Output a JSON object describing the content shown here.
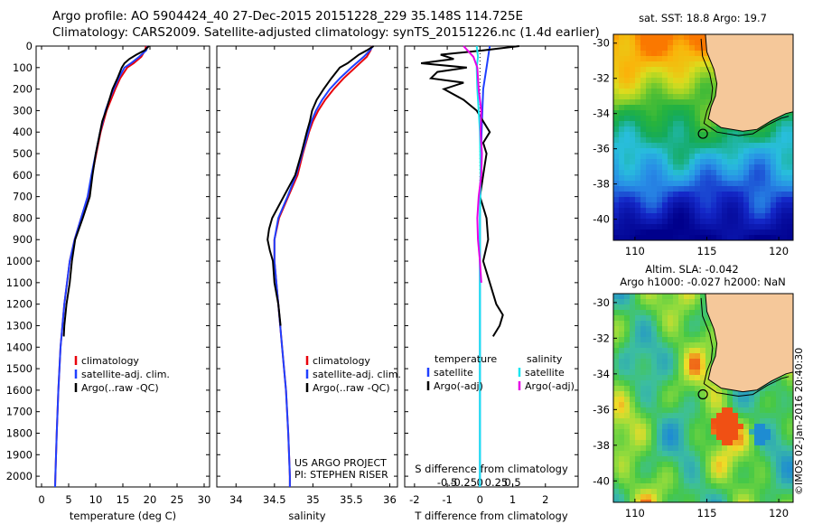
{
  "title_line1": "Argo profile: AO 5904424_40 27-Dec-2015 20151228_229 35.148S 114.725E",
  "title_line2": "Climatology: CARS2009. Satellite-adjusted climatology: synTS_20151226.nc (1.4d earlier)",
  "depth_ticks": [
    0,
    100,
    200,
    300,
    400,
    500,
    600,
    700,
    800,
    900,
    1000,
    1100,
    1200,
    1300,
    1400,
    1500,
    1600,
    1700,
    1800,
    1900,
    2000
  ],
  "colors": {
    "climatology": "#e8000b",
    "satellite": "#1f3fff",
    "argo": "#000000",
    "satellite_s": "#19e6f0",
    "argo_s": "#e600e6"
  },
  "chart_data": [
    {
      "type": "line",
      "id": "temperature",
      "xlabel": "temperature (deg C)",
      "ylabel": "",
      "xlim": [
        -1,
        31
      ],
      "ylim": [
        2050,
        0
      ],
      "xticks": [
        0,
        5,
        10,
        15,
        20,
        25,
        30
      ],
      "legend": [
        "climatology",
        "satellite-adj. clim.",
        "Argo(..raw -QC)"
      ],
      "series": [
        {
          "name": "climatology",
          "depth": [
            0,
            20,
            50,
            80,
            100,
            150,
            200,
            250,
            300,
            400,
            500,
            600,
            700,
            800,
            900,
            1000,
            1200,
            1400,
            1600,
            1800,
            2000,
            2050
          ],
          "values": [
            19.3,
            19.1,
            18.4,
            17,
            15.8,
            14.5,
            13.6,
            12.8,
            12,
            10.9,
            10.1,
            9.3,
            8.6,
            7.3,
            6.1,
            5.2,
            4.2,
            3.5,
            3.1,
            2.8,
            2.55,
            2.5
          ]
        },
        {
          "name": "satellite-adj. clim.",
          "depth": [
            0,
            20,
            50,
            80,
            100,
            150,
            200,
            250,
            300,
            400,
            500,
            600,
            700,
            800,
            900,
            1000,
            1200,
            1400,
            1600,
            1800,
            2000,
            2050
          ],
          "values": [
            19.6,
            19.3,
            18,
            16.5,
            15.3,
            14.2,
            13.3,
            12.5,
            11.8,
            10.8,
            10,
            9.2,
            8.5,
            7.3,
            6.1,
            5.2,
            4.2,
            3.5,
            3.1,
            2.8,
            2.55,
            2.5
          ]
        },
        {
          "name": "Argo(..raw -QC)",
          "depth": [
            0,
            20,
            40,
            60,
            80,
            100,
            150,
            200,
            250,
            300,
            350,
            400,
            500,
            600,
            700,
            800,
            850,
            900,
            1000,
            1100,
            1200,
            1300,
            1350
          ],
          "values": [
            19.8,
            19,
            17.5,
            16.2,
            15.3,
            14.8,
            14,
            13.1,
            12.5,
            11.9,
            11.2,
            10.8,
            10,
            9.4,
            8.9,
            7.6,
            6.9,
            6.2,
            5.6,
            5.2,
            4.6,
            4.2,
            4.1
          ]
        }
      ]
    },
    {
      "type": "line",
      "id": "salinity",
      "xlabel": "salinity",
      "ylabel": "",
      "xlim": [
        33.75,
        36.1
      ],
      "ylim": [
        2050,
        0
      ],
      "xticks": [
        34,
        34.5,
        35,
        35.5,
        36
      ],
      "tick_labels": [
        "34",
        "34.5",
        "35",
        "35.5",
        "36"
      ],
      "legend": [
        "climatology",
        "satellite-adj. clim.",
        "Argo(..raw -QC)"
      ],
      "annotation": [
        "US ARGO PROJECT",
        "PI: STEPHEN RISER"
      ],
      "series": [
        {
          "name": "climatology",
          "depth": [
            0,
            20,
            50,
            100,
            150,
            200,
            250,
            300,
            350,
            400,
            500,
            600,
            700,
            800,
            900,
            1000,
            1200,
            1400,
            1600,
            1800,
            2000,
            2050
          ],
          "values": [
            35.77,
            35.75,
            35.7,
            35.55,
            35.4,
            35.27,
            35.16,
            35.07,
            35.0,
            34.95,
            34.87,
            34.8,
            34.68,
            34.56,
            34.5,
            34.5,
            34.55,
            34.6,
            34.65,
            34.68,
            34.7,
            34.7
          ]
        },
        {
          "name": "satellite-adj. clim.",
          "depth": [
            0,
            20,
            50,
            100,
            150,
            200,
            250,
            300,
            350,
            400,
            500,
            600,
            700,
            800,
            900,
            1000,
            1200,
            1400,
            1600,
            1800,
            2000,
            2050
          ],
          "values": [
            35.78,
            35.74,
            35.66,
            35.5,
            35.35,
            35.22,
            35.12,
            35.04,
            34.98,
            34.94,
            34.86,
            34.78,
            34.67,
            34.55,
            34.5,
            34.5,
            34.55,
            34.6,
            34.65,
            34.68,
            34.7,
            34.7
          ]
        },
        {
          "name": "Argo(..raw -QC)",
          "depth": [
            0,
            20,
            40,
            80,
            100,
            150,
            200,
            250,
            300,
            350,
            400,
            500,
            600,
            700,
            800,
            850,
            900,
            950,
            1000,
            1100,
            1200,
            1300
          ],
          "values": [
            35.79,
            35.7,
            35.6,
            35.45,
            35.35,
            35.24,
            35.14,
            35.05,
            34.99,
            34.96,
            34.92,
            34.85,
            34.77,
            34.62,
            34.47,
            34.43,
            34.41,
            34.44,
            34.48,
            34.5,
            34.55,
            34.58
          ]
        }
      ]
    },
    {
      "type": "line",
      "id": "differences",
      "xlabel": "T difference from climatology",
      "title": "S difference from climatology",
      "xlim": [
        -2.3,
        3
      ],
      "ylim": [
        2050,
        0
      ],
      "xticks": [
        -2,
        -1,
        0,
        1,
        2
      ],
      "s_xticks": [
        -0.5,
        -0.25,
        0,
        0.25,
        0.5
      ],
      "s_tick_labels": [
        "-0.5",
        "-0.25",
        "0",
        "0.25",
        "0.5"
      ],
      "legend_temperature_title": "temperature",
      "legend_salinity_title": "salinity",
      "legend": [
        "satellite",
        "Argo(-adj)",
        "satellite",
        "Argo(-adj)"
      ],
      "series": [
        {
          "name": "satellite",
          "kind": "T",
          "depth": [
            0,
            100,
            200,
            400,
            600,
            800,
            1000,
            1200,
            1400,
            1600,
            1800,
            2000,
            2050
          ],
          "values": [
            0.3,
            0.2,
            0.1,
            0.05,
            0.02,
            0,
            0,
            0,
            0,
            0,
            0,
            0,
            0
          ]
        },
        {
          "name": "Argo(-adj)",
          "kind": "T",
          "depth": [
            0,
            20,
            40,
            60,
            80,
            100,
            120,
            150,
            170,
            200,
            250,
            300,
            350,
            400,
            450,
            500,
            600,
            700,
            800,
            900,
            1000,
            1100,
            1200,
            1250,
            1300,
            1350
          ],
          "values": [
            1.2,
            0.1,
            -1.2,
            -0.8,
            -1.8,
            -0.4,
            -1.3,
            -1.5,
            -0.5,
            -1.1,
            -0.5,
            -0.1,
            0.1,
            0.3,
            0.1,
            0.2,
            0.1,
            0,
            0.2,
            0.25,
            0.1,
            0.3,
            0.5,
            0.7,
            0.6,
            0.4
          ]
        },
        {
          "name": "satellite",
          "kind": "S",
          "depth": [
            0,
            50,
            100,
            200,
            300,
            400,
            600,
            800,
            1000,
            1200,
            1400,
            1600,
            1800,
            2000,
            2050
          ],
          "values": [
            -0.05,
            -0.03,
            -0.05,
            -0.04,
            -0.02,
            0,
            0.01,
            0,
            0,
            0,
            0,
            0,
            0,
            0,
            0
          ]
        },
        {
          "name": "Argo(-adj)",
          "kind": "S",
          "depth": [
            0,
            50,
            100,
            150,
            200,
            250,
            300,
            400,
            500,
            600,
            700,
            800,
            900,
            1000,
            1100
          ],
          "values": [
            -0.25,
            -0.1,
            -0.04,
            -0.03,
            -0.02,
            0,
            0.02,
            0.01,
            0.03,
            0.02,
            -0.02,
            -0.04,
            -0.03,
            0,
            0.02
          ]
        }
      ]
    },
    {
      "type": "heatmap",
      "id": "sst_map",
      "title": "sat. SST: 18.8 Argo: 19.7",
      "xticks": [
        110,
        115,
        120
      ],
      "yticks": [
        -30,
        -32,
        -34,
        -36,
        -38,
        -40
      ],
      "xlim": [
        108.5,
        121
      ],
      "ylim": [
        -41.2,
        -29.5
      ],
      "profile_marker": [
        114.725,
        -35.148
      ]
    },
    {
      "type": "heatmap",
      "id": "sla_map",
      "title_line1": "Altim. SLA: -0.042",
      "title_line2": "Argo h1000: -0.027 h2000: NaN",
      "xticks": [
        110,
        115,
        120
      ],
      "yticks": [
        -30,
        -32,
        -34,
        -36,
        -38,
        -40
      ],
      "xlim": [
        108.5,
        121
      ],
      "ylim": [
        -41.2,
        -29.5
      ],
      "profile_marker": [
        114.725,
        -35.148
      ]
    }
  ],
  "credit": "©IMOS 02-Jan-2016 20:40:30"
}
